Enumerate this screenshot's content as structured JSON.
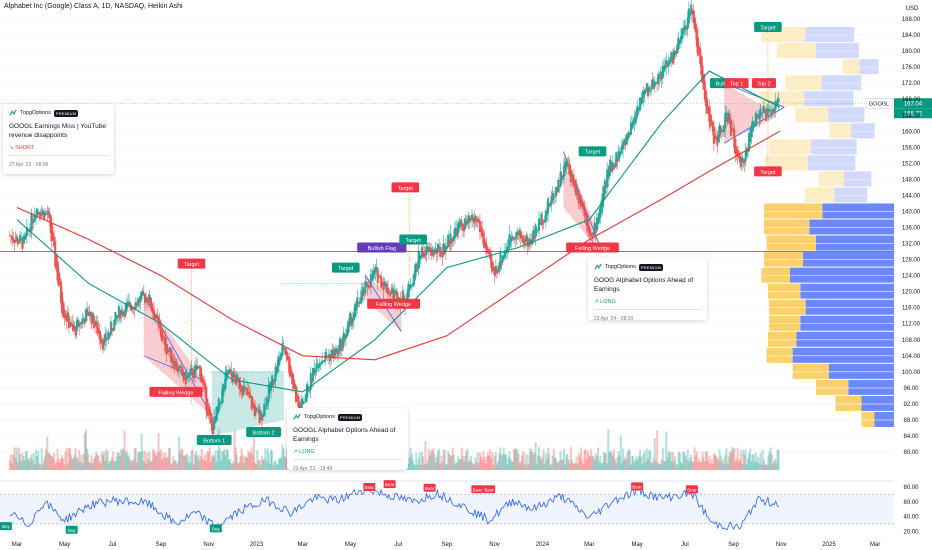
{
  "header": {
    "title": "Alphabet Inc (Google) Class A, 1D, NASDAQ, Heikin Ashi"
  },
  "price_axis": {
    "currency": "USD"
  },
  "symbol_tag": {
    "symbol": "GOOGL",
    "price": "167.04",
    "price2": "166.72"
  },
  "colors": {
    "up": "#26a69a",
    "down": "#ef5350",
    "ma_green": "#089981",
    "ma_red": "#e53935",
    "profile_yellow": "#f9cb5c",
    "profile_blue": "#5b7cfa",
    "rsi": "#2962ff"
  },
  "cards": [
    {
      "brand": "TopgOptions",
      "badge": "PREMIUM",
      "title": "GOOGL Earnings Miss | YouTube revenue disappoints",
      "direction": "SHORT",
      "date": "27 Apr '22 - 08:06"
    },
    {
      "brand": "TopgOptions",
      "badge": "PREMIUM",
      "title": "GOOGL Alphabet Options Ahead of Earnings",
      "direction": "LONG",
      "date": "23 Apr '23 - 18:49"
    },
    {
      "brand": "TopgOptions",
      "badge": "PREMIUM",
      "title": "GOOG Alphabet Options Ahead of Earnings",
      "direction": "LONG",
      "date": "23 Apr '24 - 08:20"
    }
  ],
  "annotations": {
    "falling_wedge": "Falling Wedge",
    "bottom1": "Bottom 1",
    "bottom2": "Bottom 2",
    "target": "Target",
    "bullish_flag": "Bullish Flag",
    "top1": "Top 1",
    "top2": "Top 2",
    "bull": "Bull",
    "bear": "Bear",
    "buy": "Buy"
  },
  "chart_data": [
    {
      "type": "candlestick",
      "title": "Alphabet Inc (Google) Class A, 1D, NASDAQ, Heikin Ashi",
      "x_tick_labels": [
        "Mar",
        "May",
        "Jul",
        "Sep",
        "Nov",
        "2023",
        "Mar",
        "May",
        "Jul",
        "Sep",
        "Nov",
        "2024",
        "Mar",
        "May",
        "Jul",
        "Sep",
        "Nov",
        "2025",
        "Mar"
      ],
      "y_tick_labels": [
        80,
        84,
        88,
        92,
        96,
        100,
        104,
        108,
        112,
        116,
        120,
        124,
        128,
        132,
        136,
        140,
        144,
        148,
        152,
        156,
        160,
        164,
        168,
        172,
        176,
        180,
        184,
        188
      ],
      "ylim": [
        78,
        191
      ],
      "close_path": [
        {
          "x": "2022-02-20",
          "y": 134
        },
        {
          "x": "2022-03-10",
          "y": 132
        },
        {
          "x": "2022-03-25",
          "y": 141
        },
        {
          "x": "2022-04-10",
          "y": 139
        },
        {
          "x": "2022-04-28",
          "y": 116
        },
        {
          "x": "2022-05-12",
          "y": 110
        },
        {
          "x": "2022-06-01",
          "y": 115
        },
        {
          "x": "2022-06-20",
          "y": 107
        },
        {
          "x": "2022-07-10",
          "y": 115
        },
        {
          "x": "2022-08-15",
          "y": 119
        },
        {
          "x": "2022-09-05",
          "y": 107
        },
        {
          "x": "2022-10-01",
          "y": 98
        },
        {
          "x": "2022-10-20",
          "y": 101
        },
        {
          "x": "2022-11-05",
          "y": 85
        },
        {
          "x": "2022-11-25",
          "y": 100
        },
        {
          "x": "2022-12-15",
          "y": 96
        },
        {
          "x": "2023-01-05",
          "y": 88
        },
        {
          "x": "2023-02-05",
          "y": 107
        },
        {
          "x": "2023-02-25",
          "y": 90
        },
        {
          "x": "2023-03-20",
          "y": 103
        },
        {
          "x": "2023-04-15",
          "y": 105
        },
        {
          "x": "2023-05-10",
          "y": 117
        },
        {
          "x": "2023-06-01",
          "y": 125
        },
        {
          "x": "2023-06-20",
          "y": 120
        },
        {
          "x": "2023-07-10",
          "y": 118
        },
        {
          "x": "2023-07-30",
          "y": 130
        },
        {
          "x": "2023-08-25",
          "y": 130
        },
        {
          "x": "2023-09-15",
          "y": 136
        },
        {
          "x": "2023-10-10",
          "y": 138
        },
        {
          "x": "2023-10-30",
          "y": 124
        },
        {
          "x": "2023-11-25",
          "y": 135
        },
        {
          "x": "2023-12-15",
          "y": 132
        },
        {
          "x": "2024-01-10",
          "y": 142
        },
        {
          "x": "2024-02-01",
          "y": 152
        },
        {
          "x": "2024-02-20",
          "y": 142
        },
        {
          "x": "2024-03-05",
          "y": 133
        },
        {
          "x": "2024-03-25",
          "y": 150
        },
        {
          "x": "2024-04-15",
          "y": 157
        },
        {
          "x": "2024-05-05",
          "y": 168
        },
        {
          "x": "2024-05-30",
          "y": 174
        },
        {
          "x": "2024-06-20",
          "y": 180
        },
        {
          "x": "2024-07-10",
          "y": 191
        },
        {
          "x": "2024-07-25",
          "y": 170
        },
        {
          "x": "2024-08-08",
          "y": 157
        },
        {
          "x": "2024-08-25",
          "y": 164
        },
        {
          "x": "2024-09-10",
          "y": 150
        },
        {
          "x": "2024-09-30",
          "y": 165
        },
        {
          "x": "2024-10-15",
          "y": 164
        },
        {
          "x": "2024-10-30",
          "y": 167
        }
      ],
      "moving_averages": [
        {
          "name": "",
          "color": "#089981",
          "values": [
            {
              "x": "2022-03-01",
              "y": 138
            },
            {
              "x": "2022-06-01",
              "y": 122
            },
            {
              "x": "2022-09-01",
              "y": 112
            },
            {
              "x": "2022-12-01",
              "y": 98
            },
            {
              "x": "2023-03-01",
              "y": 95
            },
            {
              "x": "2023-06-01",
              "y": 108
            },
            {
              "x": "2023-09-01",
              "y": 126
            },
            {
              "x": "2023-12-01",
              "y": 131
            },
            {
              "x": "2024-03-01",
              "y": 138
            },
            {
              "x": "2024-06-01",
              "y": 162
            },
            {
              "x": "2024-08-01",
              "y": 175
            },
            {
              "x": "2024-10-30",
              "y": 166
            }
          ]
        },
        {
          "name": "",
          "color": "#e53935",
          "values": [
            {
              "x": "2022-03-01",
              "y": 141
            },
            {
              "x": "2022-06-01",
              "y": 133
            },
            {
              "x": "2022-09-01",
              "y": 124
            },
            {
              "x": "2022-12-01",
              "y": 113
            },
            {
              "x": "2023-03-01",
              "y": 104
            },
            {
              "x": "2023-06-01",
              "y": 103
            },
            {
              "x": "2023-09-01",
              "y": 109
            },
            {
              "x": "2023-12-01",
              "y": 121
            },
            {
              "x": "2024-03-01",
              "y": 133
            },
            {
              "x": "2024-06-01",
              "y": 143
            },
            {
              "x": "2024-08-01",
              "y": 150
            },
            {
              "x": "2024-10-30",
              "y": 160
            }
          ]
        }
      ],
      "horizontal_line": 130,
      "volume_profile": {
        "bins": [
          {
            "price": 140,
            "up": 0.45,
            "down": 0.55
          },
          {
            "price": 136,
            "up": 0.35,
            "down": 0.65
          },
          {
            "price": 132,
            "up": 0.38,
            "down": 0.6
          },
          {
            "price": 128,
            "up": 0.3,
            "down": 0.7
          },
          {
            "price": 124,
            "up": 0.22,
            "down": 0.8
          },
          {
            "price": 120,
            "up": 0.25,
            "down": 0.72
          },
          {
            "price": 116,
            "up": 0.28,
            "down": 0.68
          },
          {
            "price": 112,
            "up": 0.24,
            "down": 0.72
          },
          {
            "price": 108,
            "up": 0.22,
            "down": 0.75
          },
          {
            "price": 104,
            "up": 0.2,
            "down": 0.78
          },
          {
            "price": 100,
            "up": 0.28,
            "down": 0.5
          },
          {
            "price": 96,
            "up": 0.25,
            "down": 0.35
          },
          {
            "price": 92,
            "up": 0.2,
            "down": 0.25
          },
          {
            "price": 88,
            "up": 0.1,
            "down": 0.15
          }
        ]
      }
    },
    {
      "type": "line",
      "title": "RSI",
      "y_tick_labels": [
        20,
        40,
        60,
        80
      ],
      "ylim": [
        5,
        95
      ],
      "bands": [
        30,
        70
      ],
      "values": [
        {
          "x": "2022-02-20",
          "y": 45
        },
        {
          "x": "2022-03-15",
          "y": 28
        },
        {
          "x": "2022-04-05",
          "y": 60
        },
        {
          "x": "2022-05-01",
          "y": 35
        },
        {
          "x": "2022-06-01",
          "y": 55
        },
        {
          "x": "2022-07-01",
          "y": 62
        },
        {
          "x": "2022-08-15",
          "y": 58
        },
        {
          "x": "2022-09-20",
          "y": 30
        },
        {
          "x": "2022-10-15",
          "y": 45
        },
        {
          "x": "2022-11-10",
          "y": 26
        },
        {
          "x": "2022-12-15",
          "y": 50
        },
        {
          "x": "2023-01-15",
          "y": 62
        },
        {
          "x": "2023-02-15",
          "y": 45
        },
        {
          "x": "2023-03-15",
          "y": 65
        },
        {
          "x": "2023-04-15",
          "y": 62
        },
        {
          "x": "2023-05-20",
          "y": 78
        },
        {
          "x": "2023-06-15",
          "y": 70
        },
        {
          "x": "2023-07-20",
          "y": 60
        },
        {
          "x": "2023-08-20",
          "y": 72
        },
        {
          "x": "2023-09-20",
          "y": 55
        },
        {
          "x": "2023-10-25",
          "y": 35
        },
        {
          "x": "2023-11-25",
          "y": 62
        },
        {
          "x": "2023-12-20",
          "y": 50
        },
        {
          "x": "2024-01-25",
          "y": 68
        },
        {
          "x": "2024-03-01",
          "y": 38
        },
        {
          "x": "2024-04-01",
          "y": 62
        },
        {
          "x": "2024-05-01",
          "y": 75
        },
        {
          "x": "2024-06-01",
          "y": 65
        },
        {
          "x": "2024-07-10",
          "y": 72
        },
        {
          "x": "2024-08-05",
          "y": 30
        },
        {
          "x": "2024-09-10",
          "y": 25
        },
        {
          "x": "2024-10-01",
          "y": 62
        },
        {
          "x": "2024-10-30",
          "y": 58
        }
      ]
    }
  ]
}
